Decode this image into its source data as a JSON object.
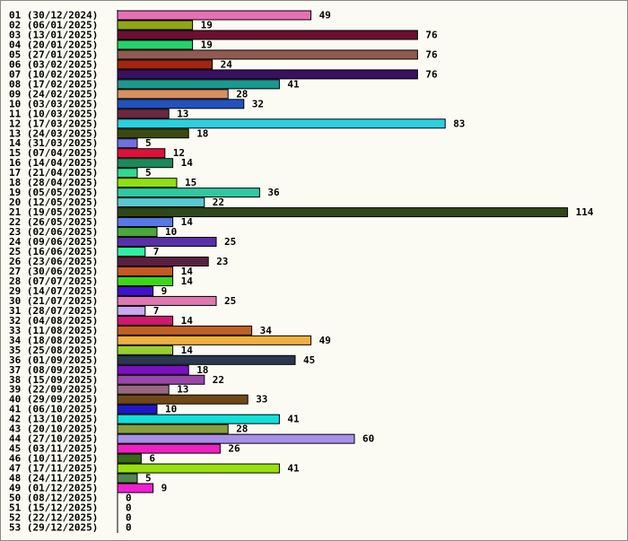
{
  "chart_data": {
    "type": "bar",
    "orientation": "horizontal",
    "title": "",
    "xlabel": "",
    "ylabel": "",
    "grid": false,
    "categories": [
      "01 (30/12/2024)",
      "02 (06/01/2025)",
      "03 (13/01/2025)",
      "04 (20/01/2025)",
      "05 (27/01/2025)",
      "06 (03/02/2025)",
      "07 (10/02/2025)",
      "08 (17/02/2025)",
      "09 (24/02/2025)",
      "10 (03/03/2025)",
      "11 (10/03/2025)",
      "12 (17/03/2025)",
      "13 (24/03/2025)",
      "14 (31/03/2025)",
      "15 (07/04/2025)",
      "16 (14/04/2025)",
      "17 (21/04/2025)",
      "18 (28/04/2025)",
      "19 (05/05/2025)",
      "20 (12/05/2025)",
      "21 (19/05/2025)",
      "22 (26/05/2025)",
      "23 (02/06/2025)",
      "24 (09/06/2025)",
      "25 (16/06/2025)",
      "26 (23/06/2025)",
      "27 (30/06/2025)",
      "28 (07/07/2025)",
      "29 (14/07/2025)",
      "30 (21/07/2025)",
      "31 (28/07/2025)",
      "32 (04/08/2025)",
      "33 (11/08/2025)",
      "34 (18/08/2025)",
      "35 (25/08/2025)",
      "36 (01/09/2025)",
      "37 (08/09/2025)",
      "38 (15/09/2025)",
      "39 (22/09/2025)",
      "40 (29/09/2025)",
      "41 (06/10/2025)",
      "42 (13/10/2025)",
      "43 (20/10/2025)",
      "44 (27/10/2025)",
      "45 (03/11/2025)",
      "46 (10/11/2025)",
      "47 (17/11/2025)",
      "48 (24/11/2025)",
      "49 (01/12/2025)",
      "50 (08/12/2025)",
      "51 (15/12/2025)",
      "52 (22/12/2025)",
      "53 (29/12/2025)"
    ],
    "values": [
      49,
      19,
      76,
      19,
      76,
      24,
      76,
      41,
      28,
      32,
      13,
      83,
      18,
      5,
      12,
      14,
      5,
      15,
      36,
      22,
      114,
      14,
      10,
      25,
      7,
      23,
      14,
      14,
      9,
      25,
      7,
      14,
      34,
      49,
      14,
      45,
      18,
      22,
      13,
      33,
      10,
      41,
      28,
      60,
      26,
      6,
      41,
      5,
      9,
      0,
      0,
      0,
      0
    ],
    "colors": [
      "#e86fb4",
      "#8fa80f",
      "#6b1030",
      "#22d46a",
      "#905a50",
      "#a32410",
      "#3a1060",
      "#1a9a8e",
      "#d89060",
      "#2052c0",
      "#6a2840",
      "#2ad0e0",
      "#3a4a10",
      "#7070e0",
      "#e0103a",
      "#1a8a5a",
      "#30d890",
      "#90e010",
      "#30c8a0",
      "#58c8d0",
      "#304818",
      "#5878e8",
      "#48a838",
      "#5830a8",
      "#30f0a0",
      "#5a2040",
      "#c85820",
      "#38d818",
      "#4010d0",
      "#e078b0",
      "#c8a8f0",
      "#d01870",
      "#c06020",
      "#f0b040",
      "#98d030",
      "#2a3850",
      "#7810c0",
      "#9848a8",
      "#986880",
      "#704818",
      "#2018c8",
      "#10e0d8",
      "#88a040",
      "#a890e8",
      "#f020c0",
      "#386818",
      "#98e010",
      "#508850",
      "#f020d0",
      "#888888",
      "#888888",
      "#888888",
      "#888888"
    ],
    "xlim": [
      0,
      114
    ]
  }
}
